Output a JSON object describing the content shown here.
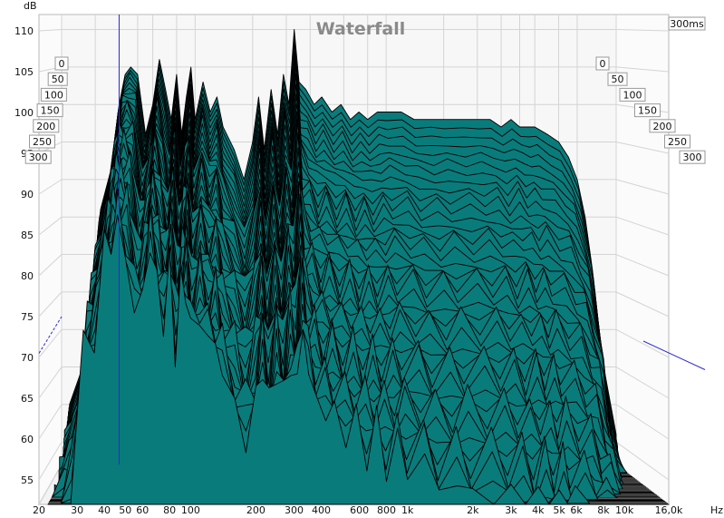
{
  "chart_data": {
    "type": "area",
    "title": "Waterfall",
    "time_window_label": "300ms",
    "y_unit": "dB",
    "x_unit": "Hz",
    "ylim": [
      52,
      112
    ],
    "xlim": [
      20,
      16000
    ],
    "x_scale": "log",
    "grid": true,
    "y_ticks": [
      {
        "value": 110,
        "label": "110"
      },
      {
        "value": 105,
        "label": "105"
      },
      {
        "value": 100,
        "label": "100"
      },
      {
        "value": 95,
        "label": "95"
      },
      {
        "value": 90,
        "label": "90"
      },
      {
        "value": 85,
        "label": "85"
      },
      {
        "value": 80,
        "label": "80"
      },
      {
        "value": 75,
        "label": "75"
      },
      {
        "value": 70,
        "label": "70"
      },
      {
        "value": 65,
        "label": "65"
      },
      {
        "value": 60,
        "label": "60"
      },
      {
        "value": 55,
        "label": "55"
      }
    ],
    "x_ticks": [
      {
        "value": 20,
        "label": "20"
      },
      {
        "value": 30,
        "label": "30"
      },
      {
        "value": 40,
        "label": "40"
      },
      {
        "value": 50,
        "label": "50"
      },
      {
        "value": 60,
        "label": "60"
      },
      {
        "value": 80,
        "label": "80"
      },
      {
        "value": 100,
        "label": "100"
      },
      {
        "value": 200,
        "label": "200"
      },
      {
        "value": 300,
        "label": "300"
      },
      {
        "value": 400,
        "label": "400"
      },
      {
        "value": 600,
        "label": "600"
      },
      {
        "value": 800,
        "label": "800"
      },
      {
        "value": 1000,
        "label": "1k"
      },
      {
        "value": 2000,
        "label": "2k"
      },
      {
        "value": 3000,
        "label": "3k"
      },
      {
        "value": 4000,
        "label": "4k"
      },
      {
        "value": 5000,
        "label": "5k"
      },
      {
        "value": 6000,
        "label": "6k"
      },
      {
        "value": 8000,
        "label": "8k"
      },
      {
        "value": 10000,
        "label": "10k"
      },
      {
        "value": 16000,
        "label": "16,0k"
      }
    ],
    "time_ticks_ms": [
      {
        "value": 0,
        "label": "0"
      },
      {
        "value": 50,
        "label": "50"
      },
      {
        "value": 100,
        "label": "100"
      },
      {
        "value": 150,
        "label": "150"
      },
      {
        "value": 200,
        "label": "200"
      },
      {
        "value": 250,
        "label": "250"
      },
      {
        "value": 300,
        "label": "300"
      }
    ],
    "cursor_freq": 40,
    "fill_color": "#0a7b7b",
    "outline_color": "#000000",
    "grid_color": "#d4d4d4",
    "front_series": {
      "time_ms": 0,
      "x": [
        22,
        25,
        28,
        32,
        36,
        40,
        43,
        46,
        50,
        55,
        60,
        65,
        70,
        75,
        80,
        85,
        90,
        95,
        100,
        110,
        120,
        130,
        140,
        160,
        180,
        200,
        215,
        230,
        250,
        270,
        290,
        310,
        330,
        350,
        380,
        420,
        460,
        520,
        580,
        650,
        720,
        800,
        900,
        1000,
        1200,
        1400,
        1700,
        2000,
        2500,
        3000,
        3500,
        4000,
        4500,
        5000,
        5500,
        6000,
        7000,
        8000,
        9000,
        10000,
        11000,
        12000,
        13000,
        14000,
        16000
      ],
      "values": [
        60,
        64,
        70,
        86,
        91,
        100,
        104,
        105,
        104,
        96,
        100,
        106,
        102,
        98,
        104,
        96,
        101,
        105,
        98,
        103,
        99,
        101,
        97,
        94,
        90,
        95,
        101,
        94,
        102,
        96,
        104,
        100,
        110,
        103,
        102,
        100,
        101,
        99,
        100,
        98,
        99,
        98,
        99,
        99,
        99,
        98,
        98,
        98,
        98,
        98,
        98,
        97,
        98,
        97,
        97,
        97,
        96,
        95,
        93,
        90,
        85,
        78,
        70,
        64,
        56
      ]
    }
  }
}
